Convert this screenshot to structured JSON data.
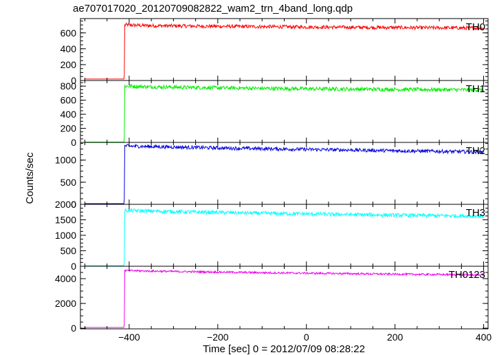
{
  "title": "ae707017020_20120709082822_wam2_trn_4band_long.qdp",
  "ylabel": "Counts/sec",
  "xlabel": "Time [sec] 0 = 2012/07/09 08:28:22",
  "xlim": [
    -510,
    410
  ],
  "xticks_major": [
    -400,
    -200,
    0,
    200,
    400
  ],
  "xtick_labels": [
    "−400",
    "−200",
    "0",
    "200",
    "400"
  ],
  "chart_data": [
    {
      "type": "line",
      "name": "TH0",
      "color": "#ff0000",
      "ylim": [
        0,
        780
      ],
      "yticks": [
        0,
        200,
        400,
        600
      ],
      "ytick_labels": [
        "0",
        "200",
        "400",
        "600"
      ],
      "pre_level": 18,
      "step_time": -410,
      "x": [
        -410,
        -350,
        -300,
        -250,
        -200,
        -150,
        -100,
        -50,
        0,
        50,
        100,
        150,
        200,
        250,
        300,
        350,
        400
      ],
      "y": [
        700,
        690,
        688,
        685,
        682,
        680,
        678,
        676,
        674,
        672,
        670,
        668,
        667,
        665,
        664,
        662,
        660
      ],
      "noise": 45
    },
    {
      "type": "line",
      "name": "TH1",
      "color": "#00ee00",
      "ylim": [
        0,
        880
      ],
      "yticks": [
        0,
        200,
        400,
        600,
        800
      ],
      "ytick_labels": [
        "0",
        "200",
        "400",
        "600",
        "800"
      ],
      "pre_level": 5,
      "step_time": -410,
      "x": [
        -410,
        -350,
        -300,
        -250,
        -200,
        -150,
        -100,
        -50,
        0,
        50,
        100,
        150,
        200,
        250,
        300,
        350,
        400
      ],
      "y": [
        800,
        790,
        785,
        780,
        776,
        772,
        768,
        765,
        762,
        760,
        758,
        756,
        754,
        752,
        750,
        748,
        746
      ],
      "noise": 55
    },
    {
      "type": "line",
      "name": "TH2",
      "color": "#0000dd",
      "ylim": [
        0,
        1400
      ],
      "yticks": [
        0,
        500,
        1000
      ],
      "ytick_labels": [
        "0",
        "500",
        "1000"
      ],
      "pre_level": 15,
      "step_time": -410,
      "x": [
        -410,
        -350,
        -300,
        -250,
        -200,
        -150,
        -100,
        -50,
        0,
        50,
        100,
        150,
        200,
        250,
        300,
        350,
        400
      ],
      "y": [
        1320,
        1305,
        1295,
        1285,
        1275,
        1265,
        1258,
        1250,
        1242,
        1235,
        1228,
        1220,
        1212,
        1205,
        1198,
        1190,
        1185
      ],
      "noise": 80
    },
    {
      "type": "line",
      "name": "TH3",
      "color": "#00ffff",
      "ylim": [
        0,
        2000
      ],
      "yticks": [
        0,
        500,
        1000,
        1500,
        2000
      ],
      "ytick_labels": [
        "0",
        "500",
        "1000",
        "1500",
        "2000"
      ],
      "pre_level": 20,
      "step_time": -410,
      "x": [
        -410,
        -350,
        -300,
        -250,
        -200,
        -150,
        -100,
        -50,
        0,
        50,
        100,
        150,
        200,
        250,
        300,
        350,
        400
      ],
      "y": [
        1800,
        1780,
        1765,
        1750,
        1738,
        1725,
        1712,
        1700,
        1690,
        1680,
        1670,
        1660,
        1650,
        1642,
        1635,
        1628,
        1620
      ],
      "noise": 120
    },
    {
      "type": "line",
      "name": "TH0123",
      "color": "#ee00ee",
      "ylim": [
        -50,
        5000
      ],
      "yticks": [
        0,
        2000,
        4000
      ],
      "ytick_labels": [
        "0",
        "2000",
        "4000"
      ],
      "pre_level": 60,
      "step_time": -410,
      "x": [
        -410,
        -350,
        -300,
        -250,
        -200,
        -150,
        -100,
        -50,
        0,
        50,
        100,
        150,
        200,
        250,
        300,
        350,
        400
      ],
      "y": [
        4650,
        4610,
        4580,
        4555,
        4530,
        4505,
        4480,
        4460,
        4440,
        4420,
        4400,
        4380,
        4360,
        4345,
        4330,
        4315,
        4300
      ],
      "noise": 160
    }
  ]
}
